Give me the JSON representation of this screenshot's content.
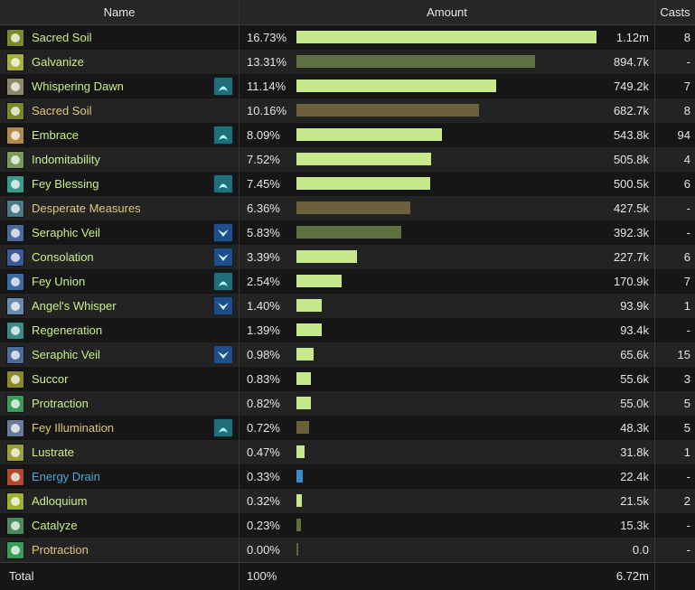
{
  "header": {
    "name": "Name",
    "amount": "Amount",
    "casts": "Casts"
  },
  "rows": [
    {
      "name": "Sacred Soil",
      "name_color": "#c9f08a",
      "icon": "sacred-soil-icon",
      "icon_color": "#7a8a2a",
      "tag": null,
      "pct": "16.73%",
      "fraction": 1.0,
      "bar_color": "#c7e98c",
      "value": "1.12m",
      "casts": "8"
    },
    {
      "name": "Galvanize",
      "name_color": "#c9f08a",
      "icon": "galvanize-icon",
      "icon_color": "#a7b03a",
      "tag": null,
      "pct": "13.31%",
      "fraction": 0.7956,
      "bar_color": "#5e7040",
      "value": "894.7k",
      "casts": "-"
    },
    {
      "name": "Whispering Dawn",
      "name_color": "#c9f08a",
      "icon": "whispering-dawn-icon",
      "icon_color": "#8a8a6a",
      "tag": "fairy",
      "pct": "11.14%",
      "fraction": 0.6659,
      "bar_color": "#c7e98c",
      "value": "749.2k",
      "casts": "7"
    },
    {
      "name": "Sacred Soil",
      "name_color": "#e0c77a",
      "icon": "sacred-soil-icon",
      "icon_color": "#7a8a2a",
      "tag": null,
      "pct": "10.16%",
      "fraction": 0.6073,
      "bar_color": "#6b6039",
      "value": "682.7k",
      "casts": "8"
    },
    {
      "name": "Embrace",
      "name_color": "#c9f08a",
      "icon": "embrace-icon",
      "icon_color": "#b08a4a",
      "tag": "fairy",
      "pct": "8.09%",
      "fraction": 0.4836,
      "bar_color": "#c7e98c",
      "value": "543.8k",
      "casts": "94"
    },
    {
      "name": "Indomitability",
      "name_color": "#c9f08a",
      "icon": "indomitability-icon",
      "icon_color": "#7a9a5a",
      "tag": null,
      "pct": "7.52%",
      "fraction": 0.4495,
      "bar_color": "#c7e98c",
      "value": "505.8k",
      "casts": "4"
    },
    {
      "name": "Fey Blessing",
      "name_color": "#c9f08a",
      "icon": "fey-blessing-icon",
      "icon_color": "#3a9a8a",
      "tag": "fairy",
      "pct": "7.45%",
      "fraction": 0.4453,
      "bar_color": "#c7e98c",
      "value": "500.5k",
      "casts": "6"
    },
    {
      "name": "Desperate Measures",
      "name_color": "#e0c77a",
      "icon": "desperate-measures-icon",
      "icon_color": "#4a7a8a",
      "tag": null,
      "pct": "6.36%",
      "fraction": 0.3802,
      "bar_color": "#6b6039",
      "value": "427.5k",
      "casts": "-"
    },
    {
      "name": "Seraphic Veil",
      "name_color": "#c9f08a",
      "icon": "seraphic-veil-icon",
      "icon_color": "#4a6a9a",
      "tag": "seraph",
      "pct": "5.83%",
      "fraction": 0.3485,
      "bar_color": "#5e7040",
      "value": "392.3k",
      "casts": "-"
    },
    {
      "name": "Consolation",
      "name_color": "#c9f08a",
      "icon": "consolation-icon",
      "icon_color": "#3a5a9a",
      "tag": "seraph",
      "pct": "3.39%",
      "fraction": 0.2026,
      "bar_color": "#c7e98c",
      "value": "227.7k",
      "casts": "6"
    },
    {
      "name": "Fey Union",
      "name_color": "#c9f08a",
      "icon": "fey-union-icon",
      "icon_color": "#3a6aa0",
      "tag": "fairy",
      "pct": "2.54%",
      "fraction": 0.1518,
      "bar_color": "#c7e98c",
      "value": "170.9k",
      "casts": "7"
    },
    {
      "name": "Angel's Whisper",
      "name_color": "#c9f08a",
      "icon": "angels-whisper-icon",
      "icon_color": "#6a8ab0",
      "tag": "seraph",
      "pct": "1.40%",
      "fraction": 0.0837,
      "bar_color": "#c7e98c",
      "value": "93.9k",
      "casts": "1"
    },
    {
      "name": "Regeneration",
      "name_color": "#c9f08a",
      "icon": "regeneration-icon",
      "icon_color": "#3a8a8a",
      "tag": null,
      "pct": "1.39%",
      "fraction": 0.0831,
      "bar_color": "#c7e98c",
      "value": "93.4k",
      "casts": "-"
    },
    {
      "name": "Seraphic Veil",
      "name_color": "#c9f08a",
      "icon": "seraphic-veil-icon",
      "icon_color": "#4a6a9a",
      "tag": "seraph",
      "pct": "0.98%",
      "fraction": 0.0586,
      "bar_color": "#c7e98c",
      "value": "65.6k",
      "casts": "15"
    },
    {
      "name": "Succor",
      "name_color": "#c9f08a",
      "icon": "succor-icon",
      "icon_color": "#8a8a2a",
      "tag": null,
      "pct": "0.83%",
      "fraction": 0.0496,
      "bar_color": "#c7e98c",
      "value": "55.6k",
      "casts": "3"
    },
    {
      "name": "Protraction",
      "name_color": "#c9f08a",
      "icon": "protraction-icon",
      "icon_color": "#3a9a5a",
      "tag": null,
      "pct": "0.82%",
      "fraction": 0.049,
      "bar_color": "#c7e98c",
      "value": "55.0k",
      "casts": "5"
    },
    {
      "name": "Fey Illumination",
      "name_color": "#e0c77a",
      "icon": "fey-illumination-icon",
      "icon_color": "#6a7a9a",
      "tag": "fairy",
      "pct": "0.72%",
      "fraction": 0.043,
      "bar_color": "#6b6039",
      "value": "48.3k",
      "casts": "5"
    },
    {
      "name": "Lustrate",
      "name_color": "#c9f08a",
      "icon": "lustrate-icon",
      "icon_color": "#9aa03a",
      "tag": null,
      "pct": "0.47%",
      "fraction": 0.0281,
      "bar_color": "#c7e98c",
      "value": "31.8k",
      "casts": "1"
    },
    {
      "name": "Energy Drain",
      "name_color": "#4fa8d8",
      "icon": "energy-drain-icon",
      "icon_color": "#b04a2a",
      "tag": null,
      "pct": "0.33%",
      "fraction": 0.0197,
      "bar_color": "#3a8ac8",
      "value": "22.4k",
      "casts": "-"
    },
    {
      "name": "Adloquium",
      "name_color": "#c9f08a",
      "icon": "adloquium-icon",
      "icon_color": "#a0b02a",
      "tag": null,
      "pct": "0.32%",
      "fraction": 0.0191,
      "bar_color": "#c7e98c",
      "value": "21.5k",
      "casts": "2"
    },
    {
      "name": "Catalyze",
      "name_color": "#c9f08a",
      "icon": "catalyze-icon",
      "icon_color": "#4a8a5a",
      "tag": null,
      "pct": "0.23%",
      "fraction": 0.0137,
      "bar_color": "#5e7040",
      "value": "15.3k",
      "casts": "-"
    },
    {
      "name": "Protraction",
      "name_color": "#e0c77a",
      "icon": "protraction-icon",
      "icon_color": "#3a9a5a",
      "tag": null,
      "pct": "0.00%",
      "fraction": 0.003,
      "bar_color": "#6b6039",
      "value": "0.0",
      "casts": "-"
    }
  ],
  "total": {
    "label": "Total",
    "pct": "100%",
    "value": "6.72m"
  }
}
